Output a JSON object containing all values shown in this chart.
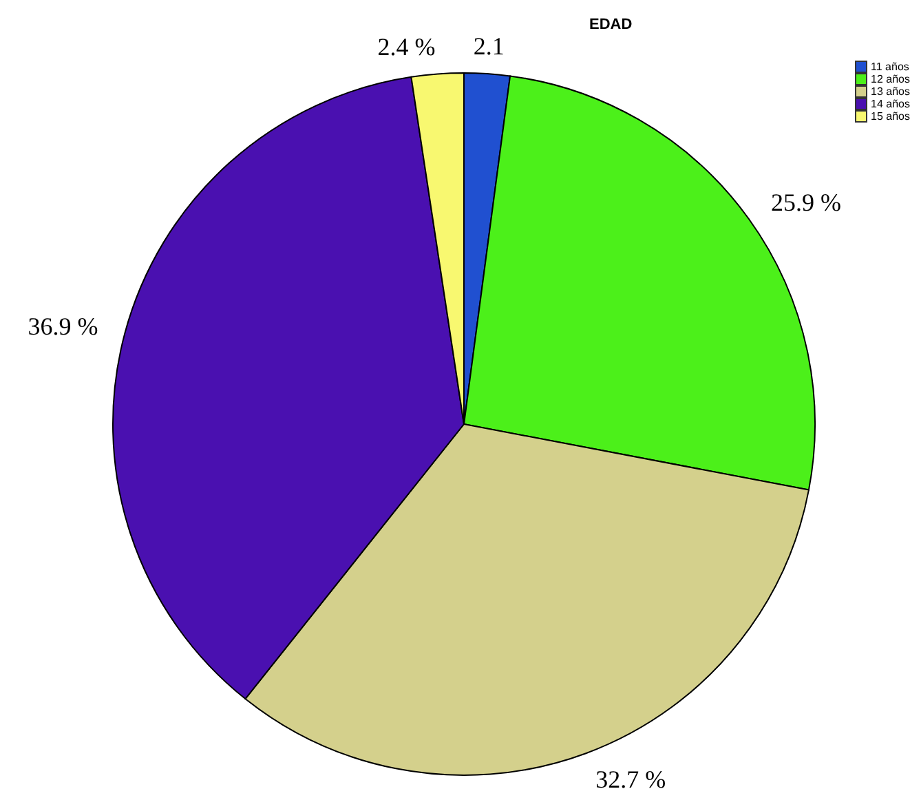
{
  "chart_data": {
    "type": "pie",
    "title": "EDAD",
    "categories": [
      "11 años",
      "12 años",
      "13 años",
      "14 años",
      "15 años"
    ],
    "values": [
      2.1,
      25.9,
      32.7,
      36.9,
      2.4
    ],
    "value_labels": [
      "2.1",
      "25.9 %",
      "32.7 %",
      "36.9 %",
      "2.4 %"
    ],
    "colors": [
      "#2050d0",
      "#4cf01a",
      "#d4d08c",
      "#4a10b0",
      "#f8f870"
    ],
    "legend": "top right"
  }
}
